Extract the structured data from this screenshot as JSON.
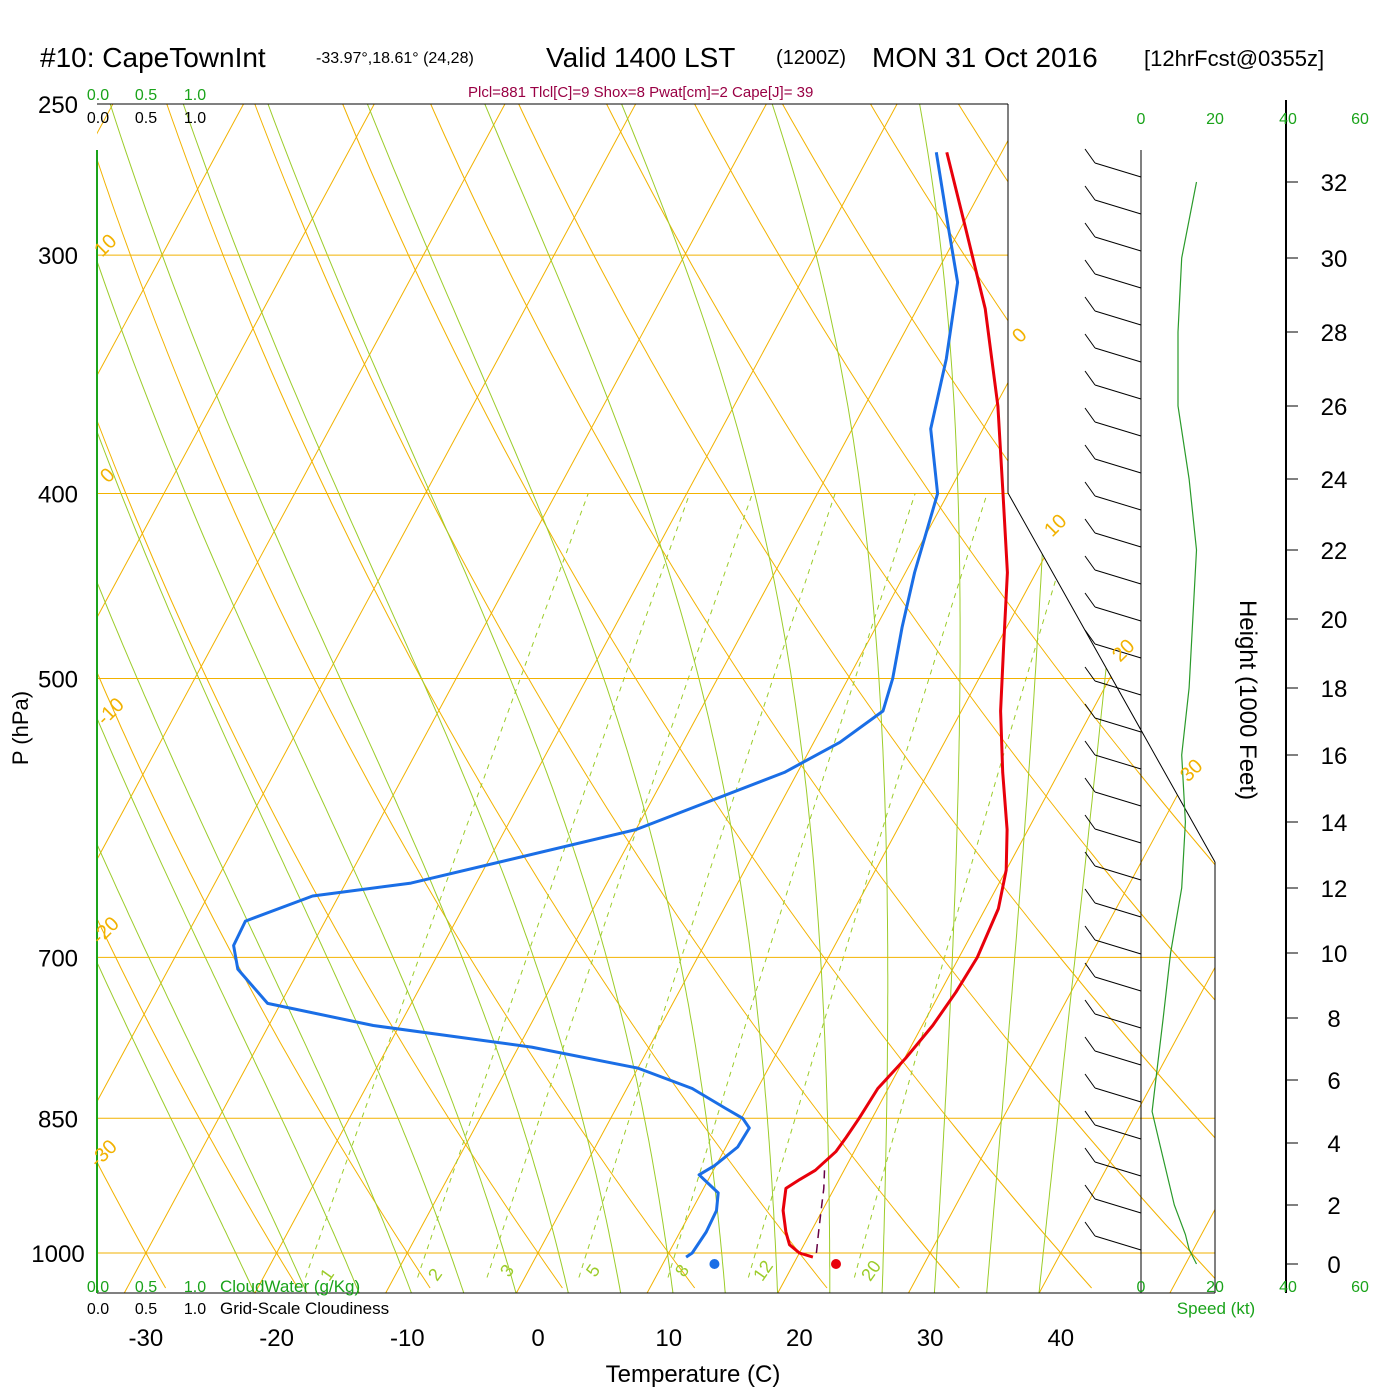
{
  "header": {
    "station": "#10: CapeTownInt",
    "coords": "-33.97°,18.61° (24,28)",
    "valid": "Valid 1400 LST",
    "zulu": "(1200Z)",
    "date": "MON 31 Oct 2016",
    "forecast": "[12hrFcst@0355z]",
    "indices": "Plcl=881 Tlcl[C]=9 Shox=8 Pwat[cm]=2 Cape[J]= 39"
  },
  "colors": {
    "isobar": "#f2b200",
    "dry_adiabat": "#f2b200",
    "moist_adiabat": "#9ccc2a",
    "mixing_ratio": "#9ccc2a",
    "temperature": "#e8000b",
    "dewpoint": "#1a6ee6",
    "wind_speed": "#2a9a2a",
    "frame": "#000000",
    "parcel": "#660044"
  },
  "top_scales": {
    "cloudwater_ticks": [
      "0.0",
      "0.5",
      "1.0"
    ],
    "cloudiness_ticks": [
      "0.0",
      "0.5",
      "1.0"
    ]
  },
  "bottom_scales": {
    "cloudwater_ticks": [
      "0.0",
      "0.5",
      "1.0"
    ],
    "cloudwater_label": "CloudWater (g/Kg)",
    "cloudiness_ticks": [
      "0.0",
      "0.5",
      "1.0"
    ],
    "cloudiness_label": "Grid-Scale Cloudiness"
  },
  "speed_scale": {
    "ticks": [
      "0",
      "20",
      "40",
      "60"
    ],
    "label": "Speed (kt)"
  },
  "chart_data": {
    "type": "skew-t",
    "title": "#10: CapeTownInt -33.97°,18.61° (24,28) Valid 1400 LST (1200Z) MON 31 Oct 2016 [12hrFcst@0355z]",
    "xlabel": "Temperature (C)",
    "ylabel": "P (hPa)",
    "y2label": "Height (1000 Feet)",
    "x_ticks": [
      -30,
      -20,
      -10,
      0,
      10,
      20,
      30,
      40
    ],
    "p_ticks": [
      250,
      300,
      400,
      500,
      700,
      850,
      1000
    ],
    "height_ticks": [
      0,
      2,
      4,
      6,
      8,
      10,
      12,
      14,
      16,
      18,
      20,
      22,
      24,
      26,
      28,
      30,
      32
    ],
    "dry_adiabat_labels": [
      "-30",
      "-20",
      "-10",
      "0",
      "10",
      "0",
      "10",
      "20",
      "30"
    ],
    "mixing_ratio_labels": [
      "1",
      "2",
      "3",
      "5",
      "8",
      "12",
      "20"
    ],
    "temperature": {
      "p": [
        1005,
        1000,
        990,
        975,
        950,
        925,
        915,
        905,
        885,
        870,
        850,
        820,
        790,
        760,
        730,
        700,
        660,
        630,
        600,
        560,
        520,
        480,
        440,
        400,
        360,
        320,
        290,
        265
      ],
      "t": [
        21.2,
        20.0,
        18.9,
        18.1,
        17.0,
        16.3,
        17.0,
        17.8,
        18.6,
        18.8,
        19.0,
        19.2,
        20.1,
        20.8,
        21.2,
        21.4,
        21.0,
        20.0,
        18.4,
        15.7,
        13.0,
        10.5,
        7.8,
        4.2,
        0.2,
        -4.8,
        -9.7,
        -14.2
      ]
    },
    "dewpoint": {
      "p": [
        1005,
        1000,
        975,
        950,
        930,
        910,
        900,
        880,
        860,
        850,
        840,
        820,
        800,
        780,
        760,
        740,
        710,
        690,
        670,
        650,
        640,
        600,
        560,
        540,
        520,
        500,
        470,
        440,
        400,
        370,
        340,
        310,
        290,
        265
      ],
      "t": [
        11.5,
        11.8,
        12.0,
        11.9,
        11.3,
        9.1,
        9.9,
        10.9,
        11.0,
        10.1,
        8.4,
        5.0,
        0.0,
        -9.0,
        -22.0,
        -31.0,
        -34.7,
        -36.0,
        -36.1,
        -32.0,
        -25.0,
        -10.0,
        -1.0,
        2.0,
        4.0,
        3.4,
        2.0,
        0.7,
        -0.8,
        -4.0,
        -5.7,
        -8.0,
        -11.0,
        -15.0
      ]
    },
    "parcel": {
      "p": [
        1000,
        975,
        950,
        925,
        905
      ],
      "t": [
        21.3,
        20.6,
        19.9,
        19.2,
        18.5
      ]
    },
    "surface_markers": [
      {
        "name": "dewpoint",
        "value": 13.5
      },
      {
        "name": "temperature",
        "value": 22.8
      }
    ],
    "wind_speed_kt": {
      "height_kft": [
        0,
        0.5,
        1,
        2,
        3,
        4,
        5,
        6,
        7,
        8,
        10,
        12,
        14,
        16,
        18,
        20,
        22,
        24,
        26,
        28,
        30,
        32
      ],
      "speed": [
        15,
        13,
        12,
        9,
        7,
        5,
        3,
        4,
        5,
        6,
        8,
        11,
        12,
        11,
        13,
        14,
        15,
        13,
        10,
        10,
        11,
        15
      ]
    }
  }
}
